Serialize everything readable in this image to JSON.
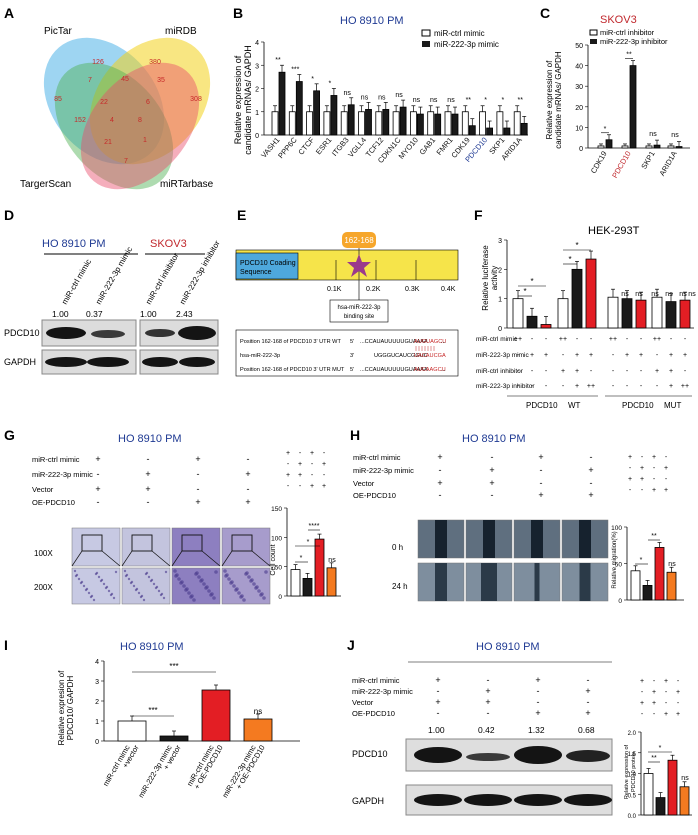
{
  "colors": {
    "blue_title": "#1f3a93",
    "red_title": "#c0282d",
    "red": "#e31e24",
    "orange": "#f47a20",
    "black": "#1a1a1a",
    "white": "#ffffff",
    "pink": "#c62828"
  },
  "panelA": {
    "letter": "A",
    "labels": [
      "PicTar",
      "miRDB",
      "TargerScan",
      "miRTarbase"
    ],
    "regions": [
      "126",
      "380",
      "85",
      "308",
      "7",
      "45",
      "35",
      "22",
      "6",
      "152",
      "4",
      "8",
      "21",
      "1",
      "7"
    ]
  },
  "panelB": {
    "letter": "B",
    "title": "HO 8910 PM",
    "ylabel": [
      "Relative expression of",
      "candidate mRNAs/ GAPDH"
    ],
    "legend": [
      "miR-ctrl mimic",
      "miR-222-3p mimic"
    ],
    "yticks": [
      "0",
      "1",
      "2",
      "3",
      "4"
    ],
    "genes": [
      "VASH1",
      "PPP6C",
      "CTCF",
      "ESR1",
      "ITGB3",
      "VGLL4",
      "TCF12",
      "CDKN1C",
      "MYO10",
      "GAB1",
      "FMR1",
      "CDK19",
      "PDCD10",
      "SKP1",
      "ARID1A"
    ],
    "ctrl": [
      1,
      1,
      1,
      1,
      1,
      1,
      1,
      1,
      1,
      1,
      1,
      1,
      1,
      1,
      1
    ],
    "mimic": [
      2.7,
      2.3,
      1.9,
      1.7,
      1.3,
      1.1,
      1.1,
      1.2,
      0.9,
      0.9,
      0.9,
      0.4,
      0.3,
      0.3,
      0.5
    ],
    "sig": [
      "**",
      "***",
      "*",
      "*",
      "ns",
      "ns",
      "ns",
      "ns",
      "ns",
      "ns",
      "ns",
      "**",
      "*",
      "*",
      "**"
    ]
  },
  "panelC": {
    "letter": "C",
    "title": "SKOV3",
    "ylabel": [
      "Relative expression of",
      "candidate mRNAs/ GAPDH"
    ],
    "legend": [
      "miR-ctrl inhibitor",
      "miR-222-3p inhibitor"
    ],
    "yticks": [
      "0",
      "10",
      "20",
      "30",
      "40",
      "50"
    ],
    "genes": [
      "CDK19",
      "PDCD10",
      "SKP1",
      "ARID1A"
    ],
    "ctrl": [
      1,
      1,
      1,
      1
    ],
    "inh": [
      4,
      40,
      1.4,
      0.7
    ],
    "sig": [
      "*",
      "**",
      "ns",
      "ns"
    ]
  },
  "panelD": {
    "letter": "D",
    "group1": "HO 8910 PM",
    "group2": "SKOV3",
    "lanes": [
      "miR-ctrl mimic",
      "miR-222-3p mimic",
      "miR-ctrl inhibitor",
      "miR-222-3p inhibitor"
    ],
    "values": [
      "1.00",
      "0.37",
      "1.00",
      "2.43"
    ],
    "rows": [
      "PDCD10",
      "GAPDH"
    ]
  },
  "panelE": {
    "letter": "E",
    "box_label": [
      "PDCD10 Coading",
      "Sequence"
    ],
    "site": "162-168",
    "ticks": [
      "0.1K",
      "0.2K",
      "0.3K",
      "0.4K"
    ],
    "binding": [
      "hsa-miR-222-3p",
      "binding site"
    ],
    "rows": [
      {
        "label": "Position 162-168 of PDCD10 3' UTR WT",
        "dir": "5'",
        "seq": "...CCAUAUUUUUGUAAAA",
        "tail": "AUGUAGCU",
        "end": "..."
      },
      {
        "label": "hsa-miR-222-3p",
        "dir": "3'",
        "seq": "UGGGUCAUCGGUC",
        "tail": "UACAUCGA",
        "end": ""
      },
      {
        "label": "Position 162-168 of PDCD10 3' UTR MUT",
        "dir": "5'",
        "seq": "...CCAUAUUUUUGUAAAA",
        "tail": "AUCAAGCU",
        "end": "..."
      }
    ]
  },
  "panelF": {
    "letter": "F",
    "title": "HEK-293T",
    "ylabel": [
      "Relative luciferase",
      "activity"
    ],
    "yticks": [
      "0",
      "1",
      "2",
      "3"
    ],
    "rowlabels": [
      "miR-ctrl mimic",
      "miR-222-3p mimic",
      "miR-ctrl inhibitor",
      "miR-222-3p inhibitor"
    ],
    "values": [
      1.0,
      0.4,
      0.12,
      1.0,
      2.0,
      2.35,
      1.05,
      1.0,
      0.95,
      1.05,
      0.9,
      0.95
    ],
    "sig": [
      "*",
      "*",
      "*",
      "*",
      "ns",
      "ns",
      "ns",
      "ns",
      "ns",
      "ns"
    ],
    "groups": [
      "PDCD10",
      "WT",
      "PDCD10",
      "MUT"
    ]
  },
  "panelG": {
    "letter": "G",
    "title": "HO 8910 PM",
    "rowlabels": [
      "miR-ctrl mimic",
      "miR-222-3p mimic",
      "Vector",
      "OE-PDCD10"
    ],
    "mag": [
      "100X",
      "200X"
    ],
    "ylabel": "Cell count",
    "yticks": [
      "0",
      "50",
      "100",
      "150"
    ],
    "values": [
      45,
      30,
      97,
      48
    ],
    "sig": [
      "*",
      "*",
      "****",
      "ns"
    ]
  },
  "panelH": {
    "letter": "H",
    "title": "HO 8910 PM",
    "rowlabels": [
      "miR-ctrl mimic",
      "miR-222-3p mimic",
      "Vector",
      "OE-PDCD10"
    ],
    "time": [
      "0 h",
      "24 h"
    ],
    "ylabel": "Relative migration(%)",
    "yticks": [
      "0",
      "50",
      "100"
    ],
    "values": [
      40,
      20,
      72,
      38
    ],
    "sig": [
      "*",
      "**",
      "ns"
    ]
  },
  "panelI": {
    "letter": "I",
    "title": "HO 8910 PM",
    "ylabel": [
      "Relative expresion of",
      "PDCD10/ GAPDH"
    ],
    "yticks": [
      "0",
      "1",
      "2",
      "3",
      "4"
    ],
    "values": [
      1.0,
      0.25,
      2.55,
      1.1
    ],
    "sig": [
      "***",
      "***",
      "ns"
    ],
    "xlabels": [
      [
        "miR-ctrl mimc",
        "+vector"
      ],
      [
        "miR-222-3p mimc",
        "+ vector"
      ],
      [
        "miR-ctrl mimc",
        "+ OE-PDCD10"
      ],
      [
        "miR-222-3p mimc",
        "+ OE-PDCD10"
      ]
    ]
  },
  "panelJ": {
    "letter": "J",
    "title": "HO 8910 PM",
    "rowlabels": [
      "miR-ctrl mimic",
      "miR-222-3p mimic",
      "Vector",
      "OE-PDCD10"
    ],
    "values": [
      "1.00",
      "0.42",
      "1.32",
      "0.68"
    ],
    "rows": [
      "PDCD10",
      "GAPDH"
    ],
    "ylabel": [
      "Relative expression of",
      "PDCD10 protein"
    ],
    "yticks": [
      "0.0",
      "0.5",
      "1.0",
      "1.5",
      "2.0"
    ],
    "bars": [
      1.0,
      0.42,
      1.32,
      0.68
    ],
    "sig": [
      "**",
      "*",
      "ns"
    ]
  },
  "signs": {
    "plus": "+",
    "minus": "-",
    "plusplus": "++"
  }
}
